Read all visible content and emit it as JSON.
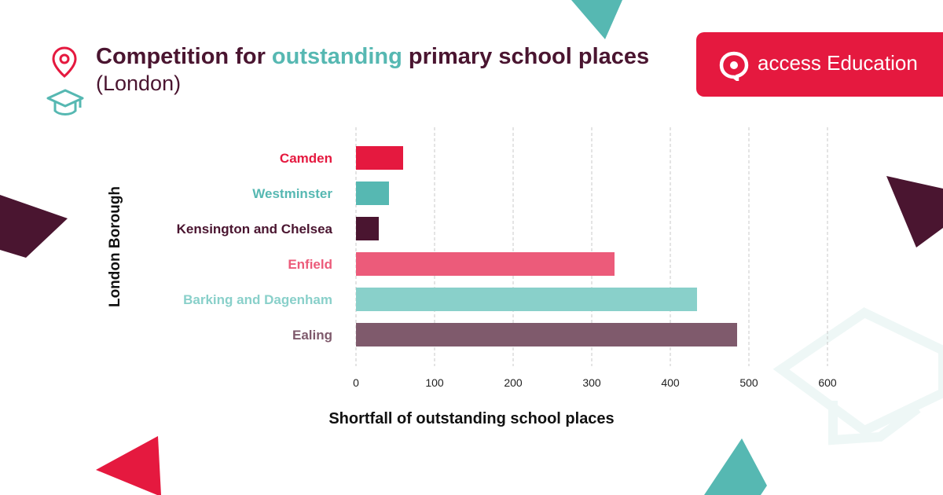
{
  "title": {
    "prefix": "Competition for ",
    "highlight": "outstanding",
    "suffix": " primary school places",
    "line2": "(London)"
  },
  "brand": {
    "name_bold": "access",
    "name_rest": " Education"
  },
  "colors": {
    "maroon": "#4a1530",
    "teal": "#56b8b2",
    "red": "#e5193f"
  },
  "chart_data": {
    "type": "bar",
    "orientation": "horizontal",
    "categories": [
      "Camden",
      "Westminster",
      "Kensington and Chelsea",
      "Enfield",
      "Barking and Dagenham",
      "Ealing"
    ],
    "values": [
      60,
      42,
      29,
      329,
      434,
      485
    ],
    "colors": [
      "#e5193f",
      "#56b8b2",
      "#4a1530",
      "#ec5b7a",
      "#89d0ca",
      "#7f5a6c"
    ],
    "xlabel": "Shortfall of outstanding school places",
    "ylabel": "London Borough",
    "xlim": [
      0,
      600
    ],
    "xticks": [
      0,
      100,
      200,
      300,
      400,
      500,
      600
    ],
    "grid": true,
    "grid_style": "dashed-vertical"
  }
}
